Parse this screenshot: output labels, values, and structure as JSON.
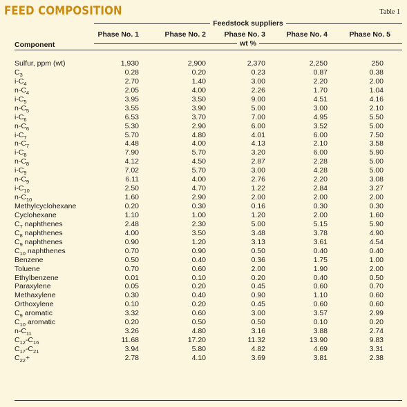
{
  "title": "FEED COMPOSITION",
  "table_label": "Table 1",
  "header": {
    "group": "Feedstock suppliers",
    "unit": "wt %",
    "component": "Component",
    "phases": [
      "Phase No. 1",
      "Phase No. 2",
      "Phase No. 3",
      "Phase No. 4",
      "Phase No. 5"
    ]
  },
  "rows": [
    {
      "name": "Sulfur, ppm (wt)",
      "sub": "",
      "suffix": "",
      "values": [
        "1,930",
        "2,900",
        "2,370",
        "2,250",
        "250"
      ]
    },
    {
      "name": "C",
      "sub": "3",
      "suffix": "",
      "values": [
        "0.28",
        "0.20",
        "0.23",
        "0.87",
        "0.38"
      ]
    },
    {
      "name": "i-C",
      "sub": "4",
      "suffix": "",
      "values": [
        "2.70",
        "1.40",
        "3.00",
        "2.20",
        "2.00"
      ]
    },
    {
      "name": "n-C",
      "sub": "4",
      "suffix": "",
      "values": [
        "2.05",
        "4.00",
        "2.26",
        "1.70",
        "1.04"
      ]
    },
    {
      "name": "i-C",
      "sub": "5",
      "suffix": "",
      "values": [
        "3.95",
        "3.50",
        "9.00",
        "4.51",
        "4.16"
      ]
    },
    {
      "name": "n-C",
      "sub": "5",
      "suffix": "",
      "values": [
        "3.55",
        "3.90",
        "5.00",
        "3.00",
        "2.10"
      ]
    },
    {
      "name": "i-C",
      "sub": "6",
      "suffix": "",
      "values": [
        "6.53",
        "3.70",
        "7.00",
        "4.95",
        "5.50"
      ]
    },
    {
      "name": "n-C",
      "sub": "6",
      "suffix": "",
      "values": [
        "5.30",
        "2.90",
        "6.00",
        "3.52",
        "5.00"
      ]
    },
    {
      "name": "i-C",
      "sub": "7",
      "suffix": "",
      "values": [
        "5.70",
        "4.80",
        "4.01",
        "6.00",
        "7.50"
      ]
    },
    {
      "name": "n-C",
      "sub": "7",
      "suffix": "",
      "values": [
        "4.48",
        "4.00",
        "4.13",
        "2.10",
        "3.58"
      ]
    },
    {
      "name": "i-C",
      "sub": "8",
      "suffix": "",
      "values": [
        "7.90",
        "5.70",
        "3.20",
        "6.00",
        "5.90"
      ]
    },
    {
      "name": "n-C",
      "sub": "8",
      "suffix": "",
      "values": [
        "4.12",
        "4.50",
        "2.87",
        "2.28",
        "5.00"
      ]
    },
    {
      "name": "i-C",
      "sub": "9",
      "suffix": "",
      "values": [
        "7.02",
        "5.70",
        "3.00",
        "4.28",
        "5.00"
      ]
    },
    {
      "name": "n-C",
      "sub": "9",
      "suffix": "",
      "values": [
        "6.11",
        "4.00",
        "2.76",
        "2.20",
        "3.08"
      ]
    },
    {
      "name": "i-C",
      "sub": "10",
      "suffix": "",
      "values": [
        "2.50",
        "4.70",
        "1.22",
        "2.84",
        "3.27"
      ]
    },
    {
      "name": "n-C",
      "sub": "10",
      "suffix": "",
      "values": [
        "1.60",
        "2.90",
        "2.00",
        "2.00",
        "2.00"
      ]
    },
    {
      "name": "Methylcyclohexane",
      "sub": "",
      "suffix": "",
      "values": [
        "0.20",
        "0.30",
        "0.16",
        "0.30",
        "0.30"
      ]
    },
    {
      "name": "Cyclohexane",
      "sub": "",
      "suffix": "",
      "values": [
        "1.10",
        "1.00",
        "1.20",
        "2.00",
        "1.60"
      ]
    },
    {
      "name": "C",
      "sub": "7",
      "suffix": " naphthenes",
      "values": [
        "2.48",
        "2.30",
        "5.00",
        "5.15",
        "5.90"
      ]
    },
    {
      "name": "C",
      "sub": "8",
      "suffix": " naphthenes",
      "values": [
        "4.00",
        "3.50",
        "3.48",
        "3.78",
        "4.90"
      ]
    },
    {
      "name": "C",
      "sub": "9",
      "suffix": " naphthenes",
      "values": [
        "0.90",
        "1.20",
        "3.13",
        "3.61",
        "4.54"
      ]
    },
    {
      "name": "C",
      "sub": "10",
      "suffix": " naphthenes",
      "values": [
        "0.70",
        "0.90",
        "0.50",
        "0.40",
        "0.40"
      ]
    },
    {
      "name": "Benzene",
      "sub": "",
      "suffix": "",
      "values": [
        "0.50",
        "0.40",
        "0.36",
        "1.75",
        "1.00"
      ]
    },
    {
      "name": "Toluene",
      "sub": "",
      "suffix": "",
      "values": [
        "0.70",
        "0.60",
        "2.00",
        "1.90",
        "2.00"
      ]
    },
    {
      "name": "Ethylbenzene",
      "sub": "",
      "suffix": "",
      "values": [
        "0.01",
        "0.10",
        "0.20",
        "0.40",
        "0.50"
      ]
    },
    {
      "name": "Paraxylene",
      "sub": "",
      "suffix": "",
      "values": [
        "0.05",
        "0.20",
        "0.45",
        "0.60",
        "0.70"
      ]
    },
    {
      "name": "Methaxylene",
      "sub": "",
      "suffix": "",
      "values": [
        "0.30",
        "0.40",
        "0.90",
        "1.10",
        "0.60"
      ]
    },
    {
      "name": "Orthoxylene",
      "sub": "",
      "suffix": "",
      "values": [
        "0.10",
        "0.20",
        "0.45",
        "0.60",
        "0.60"
      ]
    },
    {
      "name": "C",
      "sub": "9",
      "suffix": " aromatic",
      "values": [
        "3.32",
        "0.60",
        "3.00",
        "3.57",
        "2.99"
      ]
    },
    {
      "name": "C",
      "sub": "10",
      "suffix": " aromatic",
      "values": [
        "0.20",
        "0.50",
        "0.50",
        "0.10",
        "0.20"
      ]
    },
    {
      "name": "n-C",
      "sub": "11",
      "suffix": "",
      "values": [
        "3.26",
        "4.80",
        "3.16",
        "3.88",
        "2.74"
      ]
    },
    {
      "name": "C",
      "sub": "12",
      "suffix": "-C",
      "sub2": "16",
      "values": [
        "11.68",
        "17.20",
        "11.32",
        "13.90",
        "9.83"
      ]
    },
    {
      "name": "C",
      "sub": "17",
      "suffix": "-C",
      "sub2": "21",
      "values": [
        "3.94",
        "5.80",
        "4.82",
        "4.69",
        "3.31"
      ]
    },
    {
      "name": "C",
      "sub": "22",
      "suffix": "+",
      "values": [
        "2.78",
        "4.10",
        "3.69",
        "3.81",
        "2.38"
      ]
    }
  ]
}
